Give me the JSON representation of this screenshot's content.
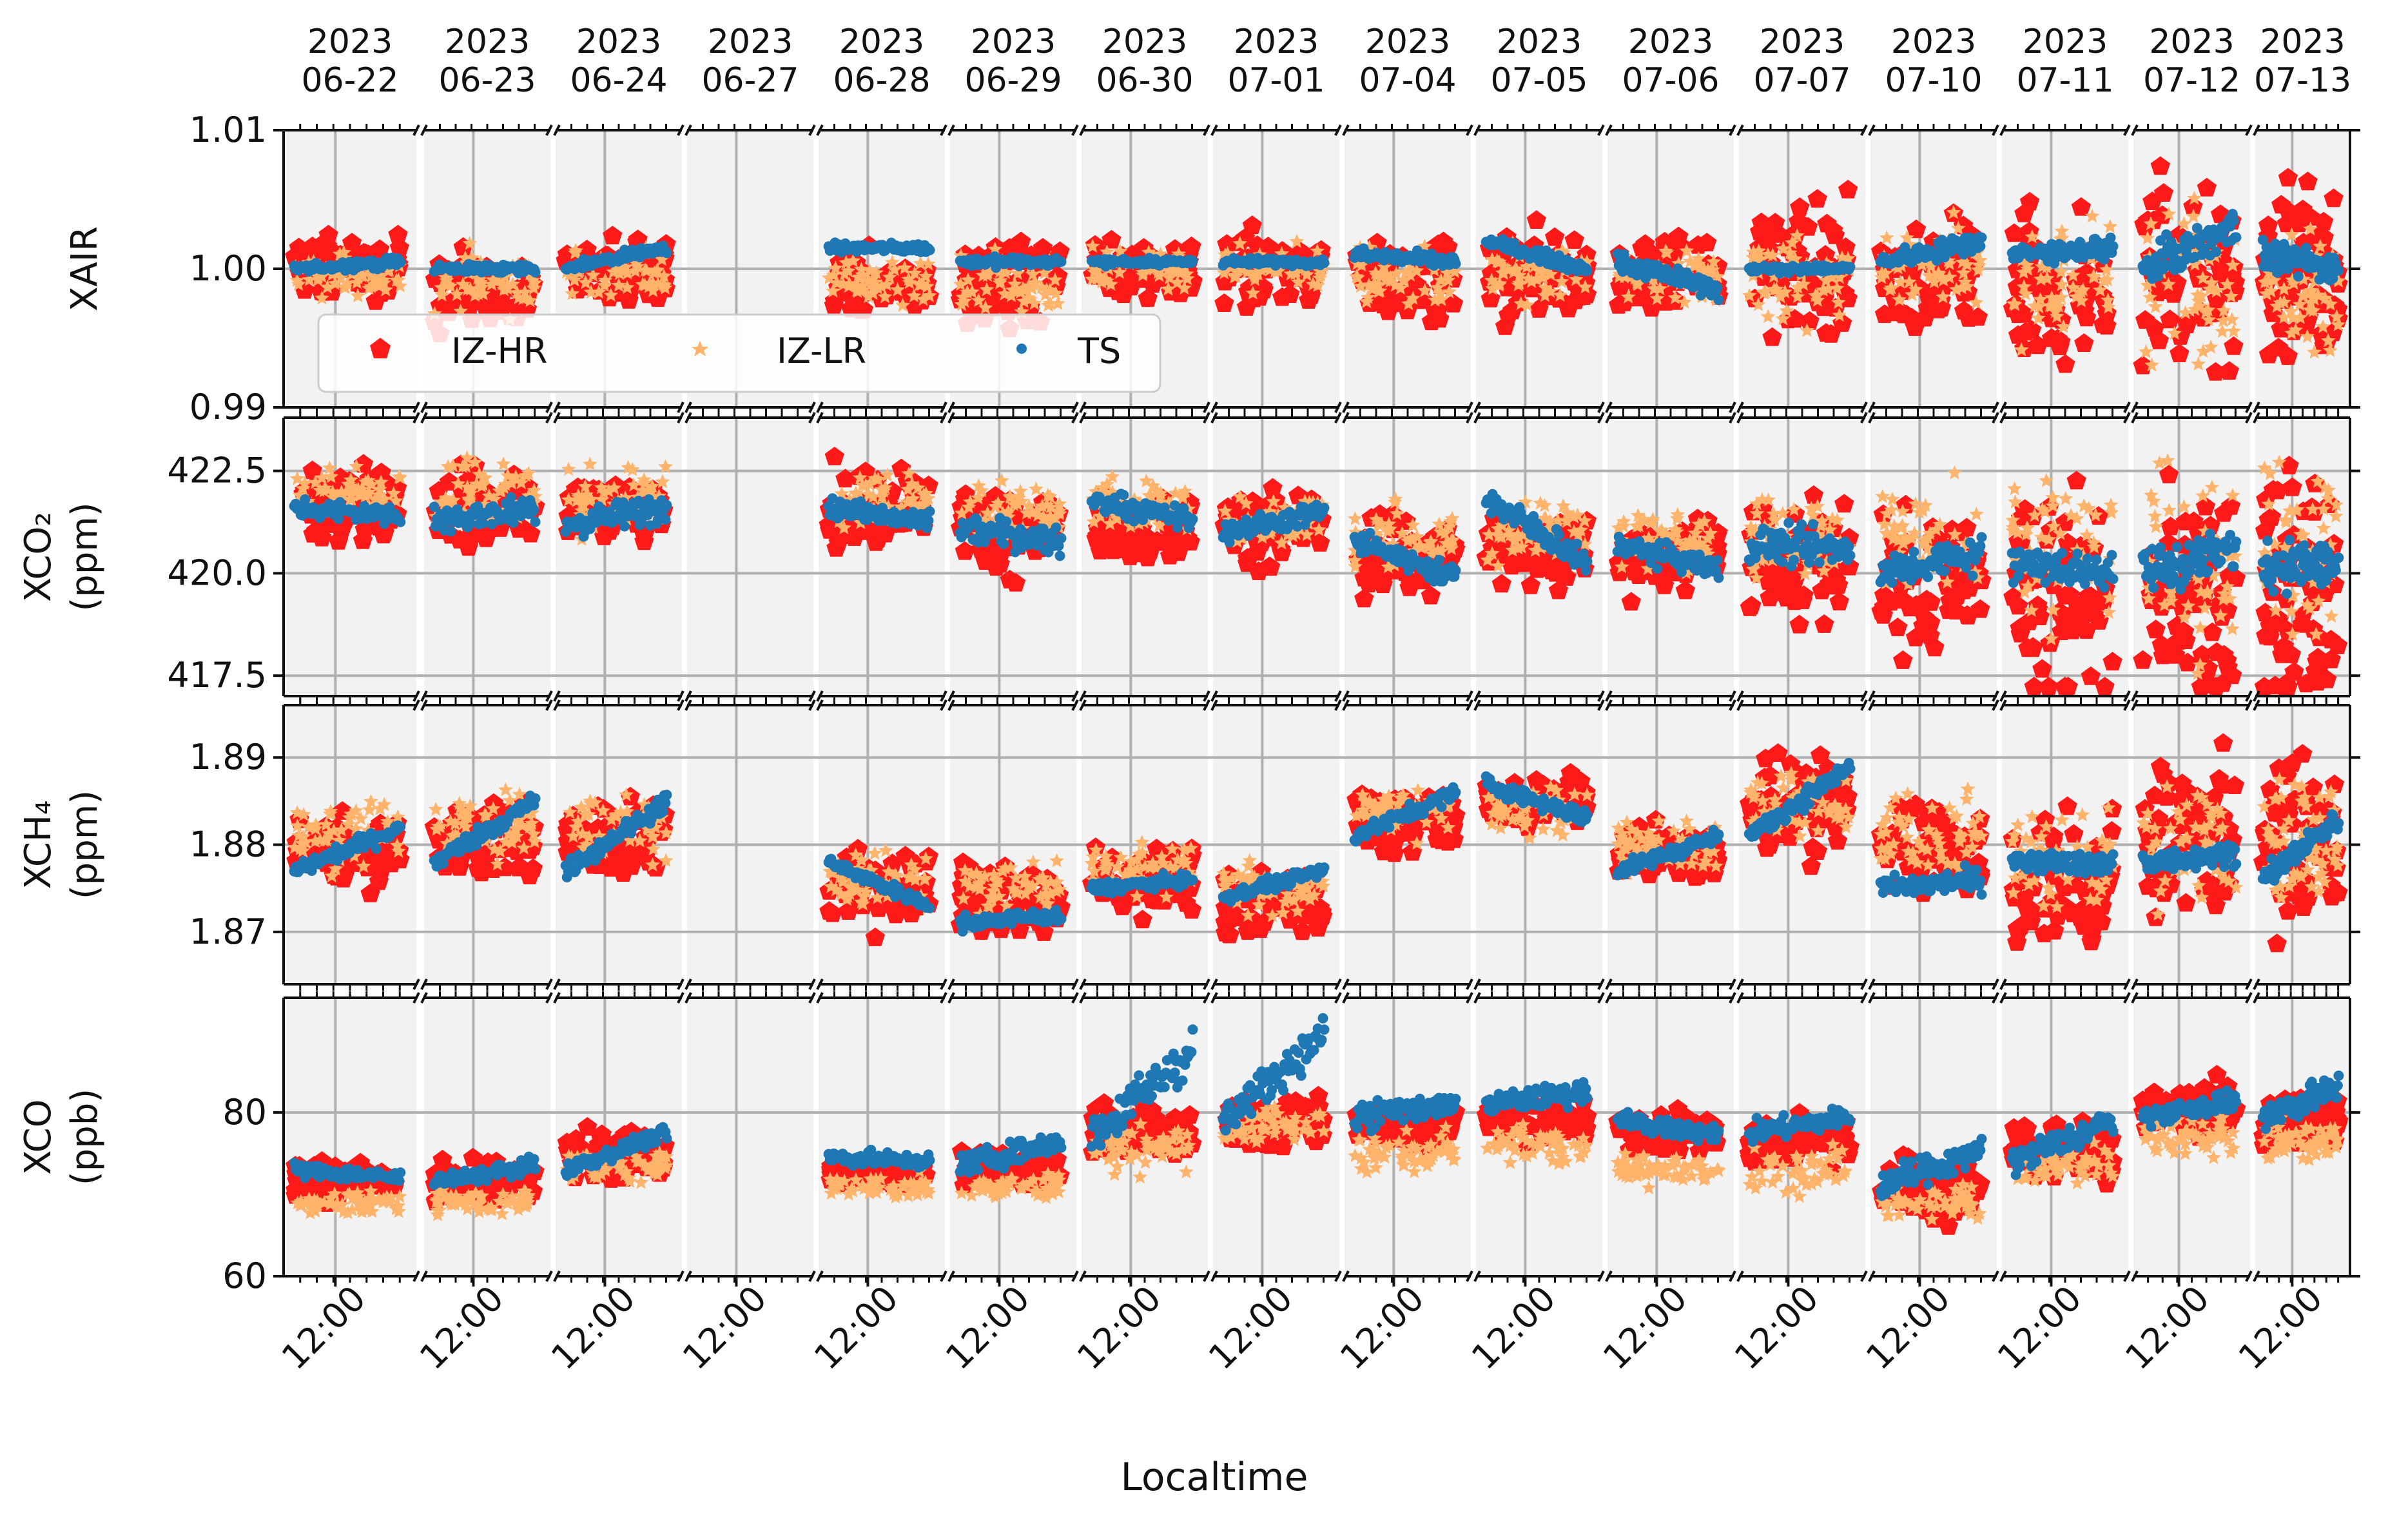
{
  "chart_data": {
    "type": "scatter",
    "x_label": "Localtime",
    "x_tick_label": "12:00",
    "legend_position": "lower-left of top panel",
    "days": [
      "2023\n06-22",
      "2023\n06-23",
      "2023\n06-24",
      "2023\n06-27",
      "2023\n06-28",
      "2023\n06-29",
      "2023\n06-30",
      "2023\n07-01",
      "2023\n07-04",
      "2023\n07-05",
      "2023\n07-06",
      "2023\n07-07",
      "2023\n07-10",
      "2023\n07-11",
      "2023\n07-12",
      "2023\n07-13"
    ],
    "series": [
      {
        "name": "IZ-HR",
        "color": "#ff1a1a",
        "marker": "pentagon"
      },
      {
        "name": "IZ-LR",
        "color": "#ffb36b",
        "marker": "star"
      },
      {
        "name": "TS",
        "color": "#1f77b4",
        "marker": "dot"
      }
    ],
    "panels": [
      {
        "id": "xair",
        "ylabel": [
          "XAIR"
        ],
        "ylim": [
          0.99,
          1.01
        ],
        "yticks": [
          0.99,
          1.0,
          1.01
        ],
        "ytick_labels": [
          "0.99",
          "1.00",
          "1.01"
        ],
        "hr_mean": [
          1.0,
          0.9985,
          1.0,
          null,
          0.999,
          0.999,
          1.0,
          1.0,
          0.9995,
          0.9995,
          0.9995,
          1.0,
          0.9995,
          0.9985,
          0.9995,
          0.9995
        ],
        "hr_spread": [
          0.0015,
          0.002,
          0.0015,
          null,
          0.0015,
          0.002,
          0.0015,
          0.0015,
          0.002,
          0.002,
          0.002,
          0.0035,
          0.0025,
          0.004,
          0.0045,
          0.0045
        ],
        "lr_mean": [
          0.9995,
          0.999,
          0.9995,
          null,
          0.999,
          0.999,
          1.0,
          1.0,
          0.9995,
          0.9995,
          0.9995,
          0.9995,
          1.0,
          0.999,
          0.999,
          0.999
        ],
        "lr_spread": [
          0.001,
          0.0015,
          0.0012,
          null,
          0.001,
          0.0015,
          0.001,
          0.001,
          0.0015,
          0.0015,
          0.0015,
          0.0025,
          0.002,
          0.003,
          0.004,
          0.003
        ],
        "ts_start": [
          1.0,
          1.0,
          1.0,
          null,
          1.0015,
          1.0005,
          1.0005,
          1.0005,
          1.001,
          1.002,
          1.0005,
          1.0,
          1.0005,
          1.001,
          1.0,
          1.001
        ],
        "ts_end": [
          1.0005,
          1.0,
          1.0015,
          null,
          1.0015,
          1.0005,
          1.0005,
          1.0005,
          1.0005,
          1.0,
          0.9985,
          1.0,
          1.002,
          1.0015,
          1.003,
          1.0
        ],
        "ts_spread": [
          0.0004,
          0.0004,
          0.0004,
          null,
          0.0004,
          0.0004,
          0.0003,
          0.0003,
          0.0006,
          0.0005,
          0.0008,
          0.0003,
          0.0008,
          0.0008,
          0.0015,
          0.0012
        ]
      },
      {
        "id": "xco2",
        "ylabel": [
          "XCO₂",
          "(ppm)"
        ],
        "ylim": [
          417.0,
          423.8
        ],
        "yticks": [
          417.5,
          420.0,
          422.5
        ],
        "ytick_labels": [
          "417.5",
          "420.0",
          "422.5"
        ],
        "hr_mean": [
          421.7,
          421.6,
          421.6,
          null,
          421.6,
          421.0,
          421.1,
          421.1,
          420.4,
          420.6,
          420.4,
          420.3,
          420.0,
          419.6,
          419.6,
          419.8
        ],
        "hr_spread": [
          0.6,
          0.6,
          0.6,
          null,
          0.6,
          0.7,
          0.6,
          0.6,
          0.6,
          0.6,
          0.6,
          1.0,
          1.2,
          1.8,
          2.0,
          2.0
        ],
        "lr_mean": [
          422.0,
          422.0,
          421.8,
          null,
          421.8,
          421.5,
          421.6,
          421.3,
          420.8,
          421.0,
          420.8,
          420.8,
          420.8,
          420.5,
          420.3,
          420.6
        ],
        "lr_spread": [
          0.4,
          0.5,
          0.5,
          null,
          0.5,
          0.5,
          0.5,
          0.5,
          0.5,
          0.5,
          0.5,
          0.8,
          1.0,
          1.2,
          1.5,
          1.5
        ],
        "ts_start": [
          421.6,
          421.3,
          421.2,
          null,
          421.6,
          421.1,
          421.8,
          421.0,
          420.8,
          421.8,
          420.7,
          420.7,
          420.0,
          420.3,
          420.0,
          420.2
        ],
        "ts_end": [
          421.4,
          421.6,
          421.6,
          null,
          421.2,
          420.8,
          421.3,
          421.5,
          419.9,
          420.3,
          420.1,
          420.6,
          420.5,
          420.0,
          420.6,
          420.2
        ],
        "ts_spread": [
          0.3,
          0.4,
          0.4,
          null,
          0.3,
          0.4,
          0.3,
          0.3,
          0.3,
          0.4,
          0.3,
          0.5,
          0.5,
          0.5,
          0.6,
          0.7
        ]
      },
      {
        "id": "xch4",
        "ylabel": [
          "XCH₄",
          "(ppm)"
        ],
        "ylim": [
          1.864,
          1.896
        ],
        "yticks": [
          1.87,
          1.88,
          1.89
        ],
        "ytick_labels": [
          "1.87",
          "1.88",
          "1.89"
        ],
        "hr_mean": [
          1.879,
          1.881,
          1.881,
          null,
          1.875,
          1.874,
          1.876,
          1.873,
          1.883,
          1.885,
          1.879,
          1.885,
          1.879,
          1.876,
          1.88,
          1.88
        ],
        "hr_spread": [
          0.0025,
          0.003,
          0.003,
          null,
          0.003,
          0.003,
          0.0025,
          0.0025,
          0.0025,
          0.002,
          0.0025,
          0.0035,
          0.004,
          0.005,
          0.006,
          0.006
        ],
        "lr_mean": [
          1.881,
          1.882,
          1.882,
          null,
          1.876,
          1.875,
          1.877,
          1.875,
          1.884,
          1.884,
          1.88,
          1.885,
          1.881,
          1.878,
          1.88,
          1.881
        ],
        "lr_spread": [
          0.003,
          0.003,
          0.003,
          null,
          0.002,
          0.002,
          0.002,
          0.002,
          0.002,
          0.002,
          0.002,
          0.003,
          0.003,
          0.004,
          0.005,
          0.005
        ],
        "ts_start": [
          1.877,
          1.878,
          1.877,
          null,
          1.878,
          1.871,
          1.875,
          1.874,
          1.881,
          1.887,
          1.877,
          1.881,
          1.875,
          1.878,
          1.878,
          1.876
        ],
        "ts_end": [
          1.882,
          1.885,
          1.885,
          null,
          1.873,
          1.872,
          1.876,
          1.877,
          1.886,
          1.883,
          1.881,
          1.889,
          1.876,
          1.878,
          1.879,
          1.883
        ],
        "ts_spread": [
          0.001,
          0.0012,
          0.0012,
          null,
          0.0008,
          0.001,
          0.0008,
          0.0008,
          0.001,
          0.001,
          0.001,
          0.0012,
          0.0015,
          0.0015,
          0.0015,
          0.0015
        ]
      },
      {
        "id": "xco",
        "ylabel": [
          "XCO",
          "(ppb)"
        ],
        "ylim": [
          60,
          94
        ],
        "yticks": [
          60,
          80
        ],
        "ytick_labels": [
          "60",
          "80"
        ],
        "hr_mean": [
          71.5,
          71.5,
          75.0,
          null,
          72.5,
          73.0,
          78.0,
          79.0,
          78.0,
          79.0,
          77.5,
          76.5,
          71.0,
          75.5,
          80.5,
          79.0
        ],
        "hr_spread": [
          1.5,
          1.5,
          2.0,
          null,
          1.0,
          1.5,
          2.5,
          2.0,
          2.0,
          1.5,
          1.5,
          2.0,
          2.5,
          2.0,
          2.0,
          2.0
        ],
        "lr_mean": [
          69.0,
          69.0,
          73.5,
          null,
          71.0,
          71.0,
          76.0,
          78.5,
          75.0,
          76.0,
          73.0,
          73.0,
          69.0,
          73.5,
          77.0,
          76.5
        ],
        "lr_spread": [
          1.0,
          1.0,
          1.5,
          null,
          1.0,
          1.0,
          2.0,
          1.5,
          1.5,
          1.5,
          1.5,
          2.0,
          1.5,
          1.5,
          1.5,
          1.5
        ],
        "ts_start": [
          73.0,
          71.5,
          73.0,
          null,
          74.5,
          73.5,
          77.0,
          79.0,
          79.5,
          81.0,
          79.0,
          77.5,
          71.0,
          74.0,
          79.5,
          79.5
        ],
        "ts_end": [
          72.0,
          73.5,
          77.5,
          null,
          74.0,
          76.5,
          87.5,
          89.5,
          81.0,
          82.5,
          77.5,
          79.5,
          75.5,
          79.0,
          81.5,
          83.0
        ],
        "ts_spread": [
          1.0,
          1.0,
          1.0,
          null,
          1.0,
          1.5,
          3.0,
          2.5,
          2.0,
          1.5,
          1.5,
          1.5,
          2.0,
          2.0,
          1.5,
          2.0
        ]
      }
    ]
  }
}
